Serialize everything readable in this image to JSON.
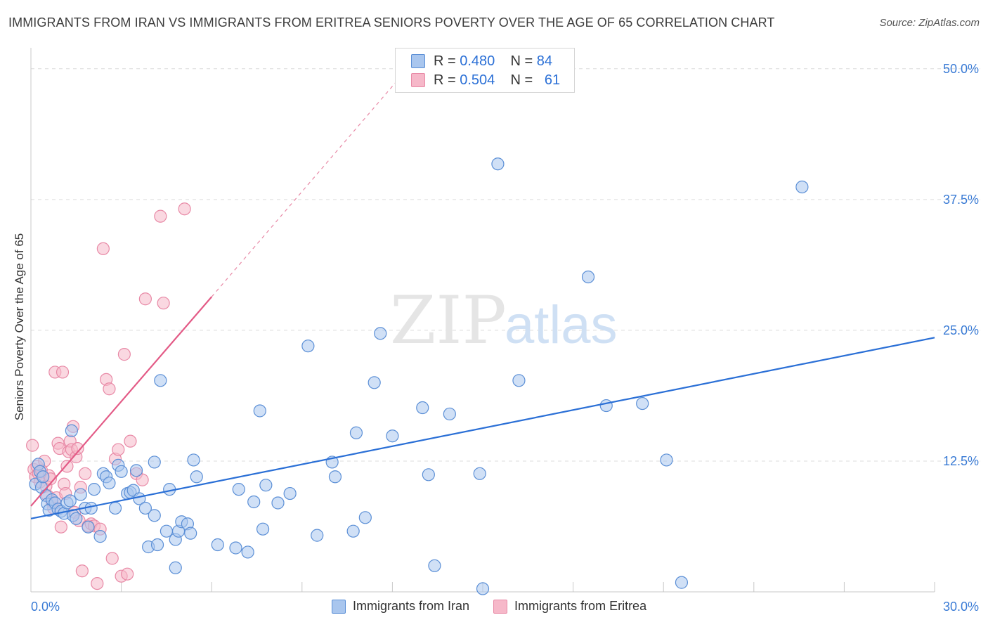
{
  "title": "IMMIGRANTS FROM IRAN VS IMMIGRANTS FROM ERITREA SENIORS POVERTY OVER THE AGE OF 65 CORRELATION CHART",
  "source": "Source: ZipAtlas.com",
  "watermark": {
    "zip": "ZIP",
    "atlas": "atlas"
  },
  "legend": {
    "iran": {
      "r_label": "R =",
      "r_value": "0.480",
      "n_label": "N =",
      "n_value": "84"
    },
    "eritrea": {
      "r_label": "R =",
      "r_value": "0.504",
      "n_label": "N =",
      "n_value": "61"
    }
  },
  "colors": {
    "iran_fill": "#a9c6ee",
    "iran_stroke": "#5b8fd6",
    "iran_line": "#2a6fd6",
    "eritrea_fill": "#f6b8c9",
    "eritrea_stroke": "#e889a6",
    "eritrea_line": "#e35a86",
    "grid": "#dcdcdc",
    "tick_label": "#3a7bd5"
  },
  "chart_data": {
    "type": "scatter",
    "title": "IMMIGRANTS FROM IRAN VS IMMIGRANTS FROM ERITREA SENIORS POVERTY OVER THE AGE OF 65 CORRELATION CHART",
    "xlabel": "",
    "ylabel": "Seniors Poverty Over the Age of 65",
    "xlim": [
      0,
      30
    ],
    "ylim": [
      0,
      52
    ],
    "x_tick_labels": [
      "0.0%",
      "30.0%"
    ],
    "y_ticks": [
      12.5,
      25.0,
      37.5,
      50.0
    ],
    "y_tick_labels": [
      "12.5%",
      "25.0%",
      "37.5%",
      "50.0%"
    ],
    "grid": true,
    "legend_position": "top-center",
    "series": [
      {
        "name": "Immigrants from Iran",
        "trend": {
          "x0": 0,
          "y0": 7.0,
          "x1": 30,
          "y1": 24.3
        },
        "points": [
          [
            0.15,
            10.3
          ],
          [
            0.25,
            12.2
          ],
          [
            0.3,
            11.5
          ],
          [
            0.35,
            10.0
          ],
          [
            0.4,
            11.0
          ],
          [
            0.5,
            9.2
          ],
          [
            0.55,
            8.4
          ],
          [
            0.6,
            7.8
          ],
          [
            0.7,
            8.8
          ],
          [
            0.8,
            8.5
          ],
          [
            0.9,
            7.9
          ],
          [
            1.0,
            7.7
          ],
          [
            1.1,
            7.5
          ],
          [
            1.2,
            8.5
          ],
          [
            1.3,
            8.7
          ],
          [
            1.35,
            15.4
          ],
          [
            1.4,
            7.3
          ],
          [
            1.5,
            7.0
          ],
          [
            1.65,
            9.3
          ],
          [
            1.8,
            8.0
          ],
          [
            1.9,
            6.2
          ],
          [
            2.0,
            8.0
          ],
          [
            2.1,
            9.8
          ],
          [
            2.3,
            5.3
          ],
          [
            2.4,
            11.3
          ],
          [
            2.5,
            11.0
          ],
          [
            2.6,
            10.4
          ],
          [
            2.8,
            8.0
          ],
          [
            2.9,
            12.1
          ],
          [
            3.0,
            11.5
          ],
          [
            3.2,
            9.4
          ],
          [
            3.3,
            9.5
          ],
          [
            3.4,
            9.7
          ],
          [
            3.5,
            11.6
          ],
          [
            3.6,
            8.9
          ],
          [
            3.8,
            8.0
          ],
          [
            3.9,
            4.3
          ],
          [
            4.1,
            12.4
          ],
          [
            4.1,
            7.3
          ],
          [
            4.2,
            4.5
          ],
          [
            4.3,
            20.2
          ],
          [
            4.5,
            5.8
          ],
          [
            4.6,
            9.8
          ],
          [
            4.8,
            5.0
          ],
          [
            4.8,
            2.3
          ],
          [
            4.9,
            5.8
          ],
          [
            5.0,
            6.7
          ],
          [
            5.2,
            6.5
          ],
          [
            5.3,
            5.6
          ],
          [
            5.4,
            12.6
          ],
          [
            5.5,
            11.0
          ],
          [
            6.2,
            4.5
          ],
          [
            6.8,
            4.2
          ],
          [
            6.9,
            9.8
          ],
          [
            7.2,
            3.8
          ],
          [
            7.4,
            8.6
          ],
          [
            7.6,
            17.3
          ],
          [
            7.7,
            6.0
          ],
          [
            7.8,
            10.2
          ],
          [
            8.2,
            8.5
          ],
          [
            8.6,
            9.4
          ],
          [
            9.2,
            23.5
          ],
          [
            9.5,
            5.4
          ],
          [
            10.0,
            12.4
          ],
          [
            10.1,
            11.0
          ],
          [
            10.7,
            5.8
          ],
          [
            10.8,
            15.2
          ],
          [
            11.1,
            7.1
          ],
          [
            11.4,
            20.0
          ],
          [
            11.6,
            24.7
          ],
          [
            12.0,
            14.9
          ],
          [
            13.0,
            17.6
          ],
          [
            13.2,
            11.2
          ],
          [
            13.4,
            2.5
          ],
          [
            13.9,
            17.0
          ],
          [
            14.9,
            11.3
          ],
          [
            15.0,
            0.3
          ],
          [
            15.5,
            40.9
          ],
          [
            16.2,
            20.2
          ],
          [
            18.5,
            30.1
          ],
          [
            19.1,
            17.8
          ],
          [
            20.3,
            18.0
          ],
          [
            21.1,
            12.6
          ],
          [
            21.6,
            0.9
          ],
          [
            25.6,
            38.7
          ]
        ]
      },
      {
        "name": "Immigrants from Eritrea",
        "trend": {
          "x0": 0,
          "y0": 8.2,
          "x1": 6.0,
          "y1": 28.2,
          "dash_to": {
            "x": 12.5,
            "y": 50.0
          }
        },
        "points": [
          [
            0.05,
            14.0
          ],
          [
            0.1,
            11.7
          ],
          [
            0.15,
            11.0
          ],
          [
            0.2,
            12.0
          ],
          [
            0.25,
            11.3
          ],
          [
            0.3,
            10.5
          ],
          [
            0.35,
            11.6
          ],
          [
            0.4,
            11.0
          ],
          [
            0.45,
            12.5
          ],
          [
            0.5,
            10.1
          ],
          [
            0.55,
            9.2
          ],
          [
            0.6,
            11.1
          ],
          [
            0.65,
            10.8
          ],
          [
            0.7,
            8.6
          ],
          [
            0.75,
            8.0
          ],
          [
            0.8,
            21.0
          ],
          [
            0.85,
            9.0
          ],
          [
            0.9,
            14.2
          ],
          [
            0.95,
            13.7
          ],
          [
            1.0,
            6.2
          ],
          [
            1.05,
            21.0
          ],
          [
            1.1,
            10.3
          ],
          [
            1.15,
            9.4
          ],
          [
            1.2,
            12.0
          ],
          [
            1.25,
            13.4
          ],
          [
            1.3,
            14.4
          ],
          [
            1.35,
            13.6
          ],
          [
            1.4,
            15.8
          ],
          [
            1.45,
            7.6
          ],
          [
            1.5,
            12.9
          ],
          [
            1.55,
            13.7
          ],
          [
            1.6,
            6.8
          ],
          [
            1.65,
            10.0
          ],
          [
            1.7,
            2.0
          ],
          [
            1.8,
            11.3
          ],
          [
            1.9,
            6.3
          ],
          [
            2.0,
            6.5
          ],
          [
            2.1,
            6.3
          ],
          [
            2.2,
            0.8
          ],
          [
            2.3,
            6.0
          ],
          [
            2.4,
            32.8
          ],
          [
            2.5,
            20.3
          ],
          [
            2.6,
            19.4
          ],
          [
            2.7,
            3.2
          ],
          [
            2.8,
            12.7
          ],
          [
            2.9,
            13.6
          ],
          [
            3.0,
            1.5
          ],
          [
            3.1,
            22.7
          ],
          [
            3.2,
            1.7
          ],
          [
            3.3,
            14.4
          ],
          [
            3.5,
            11.3
          ],
          [
            3.7,
            10.7
          ],
          [
            3.8,
            28.0
          ],
          [
            4.3,
            35.9
          ],
          [
            4.4,
            27.6
          ],
          [
            5.1,
            36.6
          ]
        ]
      }
    ]
  }
}
